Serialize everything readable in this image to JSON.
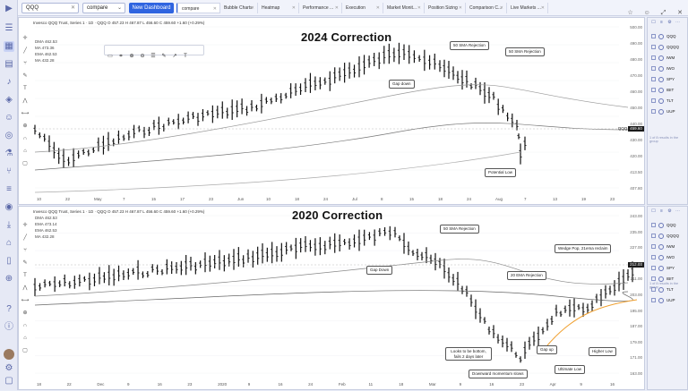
{
  "topbar": {
    "symbol": "QQQ",
    "compare_label": "compare",
    "new_dashboard": "New Dashboard",
    "plus": "+",
    "tabs": [
      "compare",
      "Bubble Charts",
      "Heatmap",
      "Performance ...",
      "Execution",
      "Market Monit...",
      "Position Sizing",
      "Comparison C...",
      "Live Markets ..."
    ]
  },
  "chart1": {
    "title": "2024 Correction",
    "info": "Invesco QQQ Trust, Series 1 · 1D · QQQ  O 457.23  H 467.87  L 456.60  C 459.60  +1.60 (+0.29%)",
    "ma": [
      "DMA  462.53",
      "MA  473.36",
      "EMA  462.53",
      "MA  432.28"
    ],
    "annotations": [
      "50 SMA Rejection",
      "50 SMA Rejection",
      "Gap down",
      "Potential Low"
    ],
    "x_labels": [
      "10",
      "22",
      "May",
      "7",
      "15",
      "17",
      "23",
      "Jun",
      "10",
      "18",
      "24",
      "Jul",
      "8",
      "15",
      "18",
      "24",
      "Aug",
      "7",
      "13",
      "19",
      "23"
    ],
    "y_labels": [
      "500.00",
      "490.00",
      "480.00",
      "470.00",
      "460.00",
      "450.00",
      "440.00",
      "430.00",
      "420.00",
      "413.50",
      "407.80"
    ],
    "last_price": "459.60"
  },
  "chart2": {
    "title": "2020 Correction",
    "info": "Invesco QQQ Trust, Series 1 · 1D · QQQ  O 457.23  H 467.87  L 456.60  C 459.60  +1.60 (+0.29%)",
    "ma": [
      "DMA  462.53",
      "EMA  473.14",
      "EMA  462.53",
      "MA  432.28"
    ],
    "annotations": [
      "50 SMA Rejection",
      "Wedge Pop, 21ema reclaim",
      "Gap Down",
      "20 EMA Rejection",
      "Gap up",
      "Higher Low",
      "Looks to be bottom, fails 2 days later",
      "Ultimate Low",
      "Downward momentum slows"
    ],
    "x_labels": [
      "18",
      "22",
      "Dec",
      "9",
      "16",
      "23",
      "2020",
      "9",
      "16",
      "24",
      "Feb",
      "11",
      "18",
      "Mar",
      "9",
      "16",
      "23",
      "Apr",
      "9",
      "16"
    ],
    "y_labels": [
      "243.00",
      "235.00",
      "227.00",
      "219.00",
      "211.00",
      "203.00",
      "195.00",
      "187.00",
      "179.00",
      "171.00",
      "163.00"
    ],
    "last_price": "212.93"
  },
  "watchlist": {
    "items": [
      "QQQ",
      "QQQQ",
      "IWM",
      "IWO",
      "SPY",
      "IBIT",
      "TLT",
      "UUP"
    ],
    "footer": "1 of 8 results in the group"
  },
  "colors": {
    "accent": "#2f64e0",
    "candle": "#000000",
    "ema_orange": "#f0a030"
  }
}
